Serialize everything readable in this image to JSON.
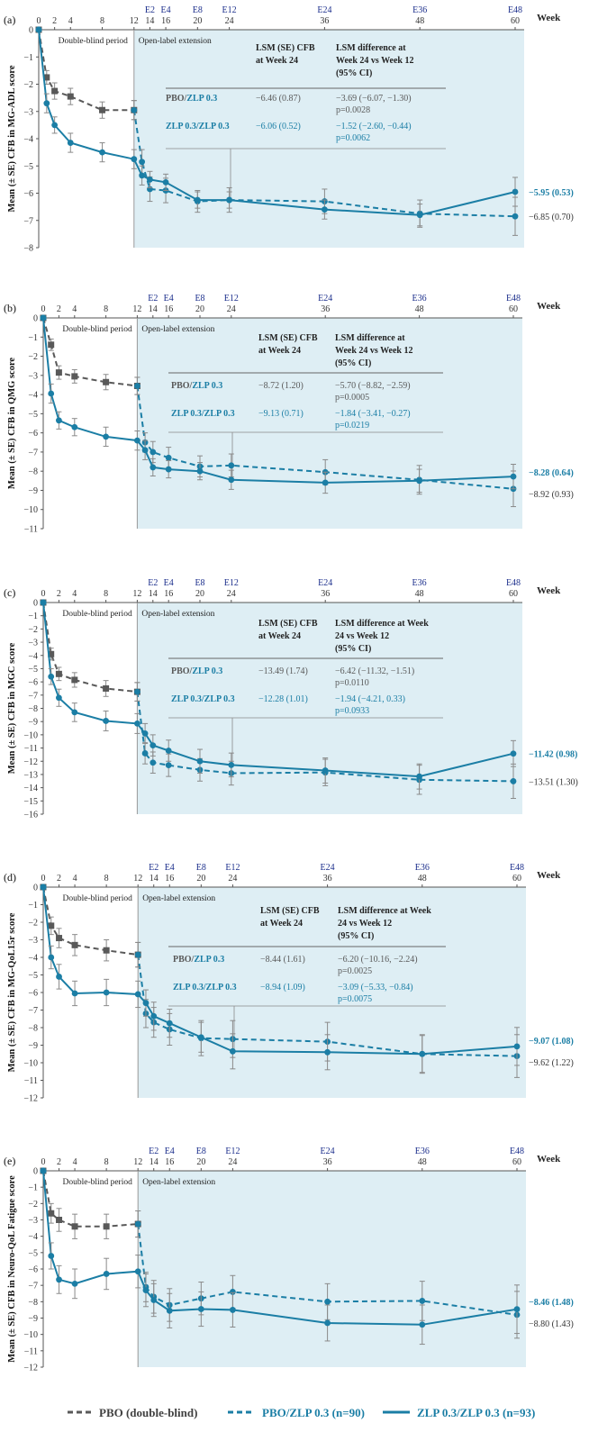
{
  "colors": {
    "pbo": "#595959",
    "zlp": "#1b7ea5",
    "shade": "#deeef4",
    "week_label": "#1c2f8c",
    "axis": "#555555",
    "rule": "#666666"
  },
  "week_axis": {
    "label": "Week",
    "weeks": [
      0,
      1,
      2,
      4,
      8,
      12,
      13,
      14,
      16,
      20,
      24,
      36,
      48,
      60
    ],
    "ticks": [
      0,
      2,
      4,
      8,
      12,
      14,
      16,
      20,
      24,
      36,
      48,
      60
    ],
    "top_visits": [
      {
        "label": "E2",
        "week": 14
      },
      {
        "label": "E4",
        "week": 16
      },
      {
        "label": "E8",
        "week": 20
      },
      {
        "label": "E12",
        "week": 24
      },
      {
        "label": "E24",
        "week": 36
      },
      {
        "label": "E36",
        "week": 48
      },
      {
        "label": "E48",
        "week": 60
      }
    ]
  },
  "period_labels": {
    "double_blind": "Double-blind period",
    "open_label": "Open-label extension"
  },
  "table_headers": {
    "col1": "LSM (SE) CFB\nat Week 24"
  },
  "legend": {
    "pbo": "PBO (double-blind)",
    "pbo_zlp": "PBO/ZLP 0.3 (n=90)",
    "zlp_zlp": "ZLP 0.3/ZLP 0.3 (n=93)"
  },
  "chart_data": [
    {
      "type": "line",
      "panel": "(a)",
      "ylabel": "Mean (± SE) CFB in MG-ADL score",
      "ylim": [
        -8,
        0
      ],
      "yticks": [
        0,
        -1,
        -2,
        -3,
        -4,
        -5,
        -6,
        -7,
        -8
      ],
      "header2": "LSM difference at\nWeek 24 vs Week 12\n(95% CI)",
      "rows": [
        {
          "label": "PBO/ZLP 0.3",
          "lsm": "−6.46 (0.87)",
          "diff": "−3.69 (−6.07, −1.30)",
          "p": "p=0.0028"
        },
        {
          "label": "ZLP 0.3/ZLP 0.3",
          "lsm": "−6.06 (0.52)",
          "diff": "−1.52 (−2.60, −0.44)",
          "p": "p=0.0062"
        }
      ],
      "end_labels": {
        "zlp": "−5.95 (0.53)",
        "pbo": "−6.85 (0.70)"
      },
      "series": [
        {
          "name": "PBO (double-blind)",
          "x": [
            0,
            1,
            2,
            4,
            8,
            12
          ],
          "values": [
            0,
            -1.75,
            -2.25,
            -2.45,
            -2.95,
            -2.95
          ],
          "se": [
            0,
            0.25,
            0.3,
            0.3,
            0.3,
            0.35
          ]
        },
        {
          "name": "PBO/ZLP 0.3",
          "x": [
            12,
            13,
            14,
            16,
            20,
            24,
            36,
            48,
            60
          ],
          "values": [
            -2.95,
            -4.85,
            -5.85,
            -5.9,
            -6.3,
            -6.25,
            -6.3,
            -6.75,
            -6.85
          ],
          "se": [
            0.35,
            0.45,
            0.45,
            0.45,
            0.4,
            0.45,
            0.45,
            0.5,
            0.7
          ]
        },
        {
          "name": "ZLP 0.3/ZLP 0.3",
          "x": [
            0,
            1,
            2,
            4,
            8,
            12,
            13,
            14,
            16,
            20,
            24,
            36,
            48,
            60
          ],
          "values": [
            0,
            -2.7,
            -3.5,
            -4.15,
            -4.5,
            -4.75,
            -5.35,
            -5.5,
            -5.6,
            -6.25,
            -6.25,
            -6.6,
            -6.8,
            -5.95
          ],
          "se": [
            0,
            0.35,
            0.3,
            0.35,
            0.35,
            0.35,
            0.35,
            0.3,
            0.3,
            0.3,
            0.3,
            0.35,
            0.4,
            0.53
          ]
        }
      ]
    },
    {
      "type": "line",
      "panel": "(b)",
      "ylabel": "Mean (± SE) CFB in QMG score",
      "ylim": [
        -11,
        0
      ],
      "yticks": [
        0,
        -1,
        -2,
        -3,
        -4,
        -5,
        -6,
        -7,
        -8,
        -9,
        -10,
        -11
      ],
      "header2": "LSM difference at\nWeek 24 vs Week 12\n(95% CI)",
      "rows": [
        {
          "label": "PBO/ZLP 0.3",
          "lsm": "−8.72 (1.20)",
          "diff": "−5.70 (−8.82, −2.59)",
          "p": "p=0.0005"
        },
        {
          "label": "ZLP 0.3/ZLP 0.3",
          "lsm": "−9.13 (0.71)",
          "diff": "−1.84 (−3.41, −0.27)",
          "p": "p=0.0219"
        }
      ],
      "end_labels": {
        "zlp": "−8.28 (0.64)",
        "pbo": "−8.92 (0.93)"
      },
      "series": [
        {
          "name": "PBO (double-blind)",
          "x": [
            0,
            1,
            2,
            4,
            8,
            12
          ],
          "values": [
            0,
            -1.4,
            -2.85,
            -3.05,
            -3.35,
            -3.55
          ],
          "se": [
            0,
            0.3,
            0.35,
            0.35,
            0.4,
            0.45
          ]
        },
        {
          "name": "PBO/ZLP 0.3",
          "x": [
            12,
            13,
            14,
            16,
            20,
            24,
            36,
            48,
            60
          ],
          "values": [
            -3.55,
            -6.5,
            -7.0,
            -7.3,
            -7.75,
            -7.7,
            -8.05,
            -8.45,
            -8.92
          ],
          "se": [
            0.45,
            0.5,
            0.55,
            0.55,
            0.55,
            0.6,
            0.65,
            0.75,
            0.93
          ]
        },
        {
          "name": "ZLP 0.3/ZLP 0.3",
          "x": [
            0,
            1,
            2,
            4,
            8,
            12,
            13,
            14,
            16,
            20,
            24,
            36,
            48,
            60
          ],
          "values": [
            0,
            -3.95,
            -5.35,
            -5.7,
            -6.2,
            -6.4,
            -6.9,
            -7.8,
            -7.9,
            -8.0,
            -8.45,
            -8.6,
            -8.5,
            -8.28
          ],
          "se": [
            0,
            0.5,
            0.45,
            0.45,
            0.5,
            0.5,
            0.5,
            0.45,
            0.45,
            0.45,
            0.5,
            0.55,
            0.6,
            0.64
          ]
        }
      ]
    },
    {
      "type": "line",
      "panel": "(c)",
      "ylabel": "Mean (± SE) CFB in MGC score",
      "ylim": [
        -16,
        0
      ],
      "yticks": [
        0,
        -1,
        -2,
        -3,
        -4,
        -5,
        -6,
        -7,
        -8,
        -9,
        -10,
        -11,
        -12,
        -13,
        -14,
        -15,
        -16
      ],
      "header2": "LSM difference at Week\n24 vs Week 12\n(95% CI)",
      "rows": [
        {
          "label": "PBO/ZLP 0.3",
          "lsm": "−13.49 (1.74)",
          "diff": "−6.42 (−11.32, −1.51)",
          "p": "p=0.0110"
        },
        {
          "label": "ZLP 0.3/ZLP 0.3",
          "lsm": "−12.28 (1.01)",
          "diff": "−1.94 (−4.21, 0.33)",
          "p": "p=0.0933"
        }
      ],
      "end_labels": {
        "zlp": "−11.42 (0.98)",
        "pbo": "−13.51 (1.30)"
      },
      "series": [
        {
          "name": "PBO (double-blind)",
          "x": [
            0,
            1,
            2,
            4,
            8,
            12
          ],
          "values": [
            0,
            -3.9,
            -5.4,
            -5.85,
            -6.5,
            -6.75
          ],
          "se": [
            0,
            0.45,
            0.5,
            0.55,
            0.6,
            0.7
          ]
        },
        {
          "name": "PBO/ZLP 0.3",
          "x": [
            12,
            13,
            14,
            16,
            20,
            24,
            36,
            48,
            60
          ],
          "values": [
            -6.75,
            -11.4,
            -12.1,
            -12.3,
            -12.65,
            -12.9,
            -12.85,
            -13.4,
            -13.51
          ],
          "se": [
            0.7,
            0.8,
            0.8,
            0.85,
            0.85,
            0.9,
            1.0,
            1.1,
            1.3
          ]
        },
        {
          "name": "ZLP 0.3/ZLP 0.3",
          "x": [
            0,
            1,
            2,
            4,
            8,
            12,
            13,
            14,
            16,
            20,
            24,
            36,
            48,
            60
          ],
          "values": [
            0,
            -5.6,
            -7.2,
            -8.3,
            -8.95,
            -9.15,
            -9.9,
            -10.8,
            -11.2,
            -12.0,
            -12.28,
            -12.7,
            -13.15,
            -11.42
          ],
          "se": [
            0,
            0.6,
            0.65,
            0.7,
            0.75,
            0.75,
            0.75,
            0.8,
            0.8,
            0.9,
            0.9,
            0.95,
            0.95,
            0.98
          ]
        }
      ]
    },
    {
      "type": "line",
      "panel": "(d)",
      "ylabel": "Mean (± SE) CFB in MG-QoL15r score",
      "ylim": [
        -12,
        0
      ],
      "yticks": [
        0,
        -1,
        -2,
        -3,
        -4,
        -5,
        -6,
        -7,
        -8,
        -9,
        -10,
        -11,
        -12
      ],
      "header2": "LSM difference at Week\n24 vs Week 12\n(95% CI)",
      "rows": [
        {
          "label": "PBO/ZLP 0.3",
          "lsm": "−8.44 (1.61)",
          "diff": "−6.20 (−10.16, −2.24)",
          "p": "p=0.0025"
        },
        {
          "label": "ZLP 0.3/ZLP 0.3",
          "lsm": "−8.94 (1.09)",
          "diff": "−3.09 (−5.33, −0.84)",
          "p": "p=0.0075"
        }
      ],
      "end_labels": {
        "zlp": "−9.07 (1.08)",
        "pbo": "−9.62 (1.22)"
      },
      "series": [
        {
          "name": "PBO (double-blind)",
          "x": [
            0,
            1,
            2,
            4,
            8,
            12
          ],
          "values": [
            0,
            -2.2,
            -2.9,
            -3.3,
            -3.6,
            -3.85
          ],
          "se": [
            0,
            0.5,
            0.55,
            0.6,
            0.6,
            0.7
          ]
        },
        {
          "name": "PBO/ZLP 0.3",
          "x": [
            12,
            13,
            14,
            16,
            20,
            24,
            36,
            48,
            60
          ],
          "values": [
            -3.85,
            -7.2,
            -7.7,
            -8.1,
            -8.6,
            -8.65,
            -8.8,
            -9.5,
            -9.62
          ],
          "se": [
            0.7,
            0.8,
            0.85,
            0.9,
            1.0,
            1.05,
            1.1,
            1.1,
            1.22
          ]
        },
        {
          "name": "ZLP 0.3/ZLP 0.3",
          "x": [
            0,
            1,
            2,
            4,
            8,
            12,
            13,
            14,
            16,
            20,
            24,
            36,
            48,
            60
          ],
          "values": [
            0,
            -4.0,
            -5.1,
            -6.05,
            -6.0,
            -6.1,
            -6.6,
            -7.35,
            -7.75,
            -8.55,
            -9.35,
            -9.4,
            -9.5,
            -9.07
          ],
          "se": [
            0,
            0.65,
            0.7,
            0.7,
            0.75,
            0.75,
            0.75,
            0.8,
            0.8,
            0.85,
            1.0,
            1.0,
            1.05,
            1.08
          ]
        }
      ]
    },
    {
      "type": "line",
      "panel": "(e)",
      "ylabel": "Mean (± SE) CFB in Neuro-QoL Fatigue score",
      "ylim": [
        -12,
        0
      ],
      "yticks": [
        0,
        -1,
        -2,
        -3,
        -4,
        -5,
        -6,
        -7,
        -8,
        -9,
        -10,
        -11,
        -12
      ],
      "header2": "",
      "rows": [],
      "end_labels": {
        "zlp": "−8.46 (1.48)",
        "pbo": "−8.80 (1.43)"
      },
      "series": [
        {
          "name": "PBO (double-blind)",
          "x": [
            0,
            1,
            2,
            4,
            8,
            12
          ],
          "values": [
            0,
            -2.6,
            -3.0,
            -3.4,
            -3.4,
            -3.25
          ],
          "se": [
            0,
            0.6,
            0.7,
            0.75,
            0.75,
            0.8
          ]
        },
        {
          "name": "PBO/ZLP 0.3",
          "x": [
            12,
            13,
            14,
            16,
            20,
            24,
            36,
            48,
            60
          ],
          "values": [
            -3.25,
            -7.1,
            -7.7,
            -8.2,
            -7.8,
            -7.4,
            -8.0,
            -7.95,
            -8.8
          ],
          "se": [
            0.8,
            0.9,
            1.0,
            1.0,
            1.0,
            1.0,
            1.1,
            1.2,
            1.43
          ]
        },
        {
          "name": "ZLP 0.3/ZLP 0.3",
          "x": [
            0,
            1,
            2,
            4,
            8,
            12,
            13,
            14,
            16,
            20,
            24,
            36,
            48,
            60
          ],
          "values": [
            0,
            -5.2,
            -6.65,
            -6.9,
            -6.3,
            -6.15,
            -7.3,
            -7.9,
            -8.55,
            -8.45,
            -8.5,
            -9.3,
            -9.4,
            -8.46
          ],
          "se": [
            0,
            0.8,
            0.85,
            0.9,
            0.95,
            1.0,
            1.0,
            1.0,
            1.05,
            1.05,
            1.05,
            1.1,
            1.2,
            1.48
          ]
        }
      ]
    }
  ]
}
